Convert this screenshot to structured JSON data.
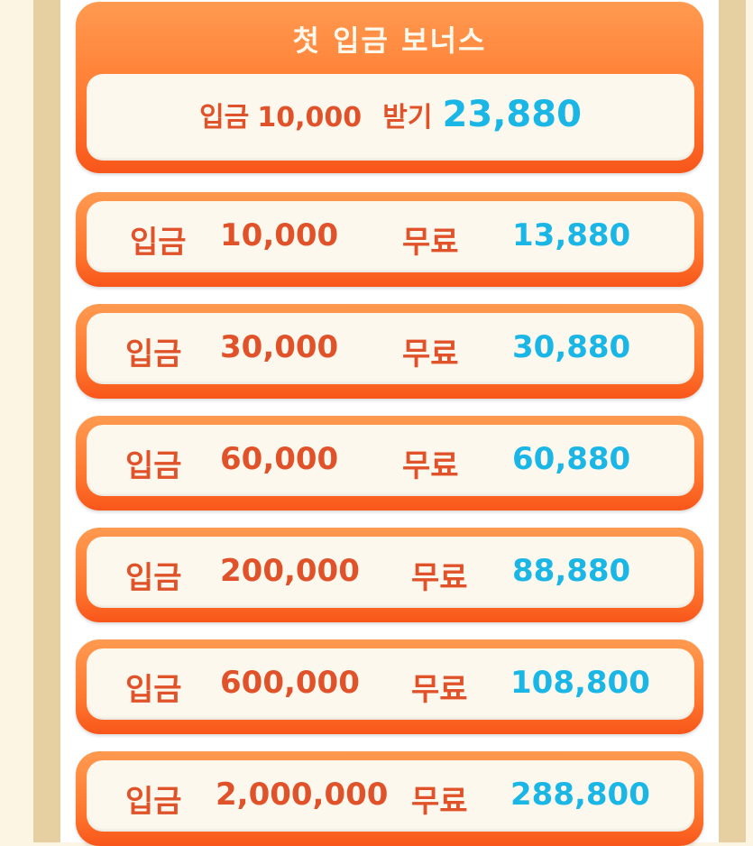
{
  "header": {
    "title": "첫 입금 보너스",
    "deposit_label": "입금",
    "deposit_amount": "10,000",
    "receive_label": "받기",
    "receive_amount": "23,880"
  },
  "rows": [
    {
      "label": "입금",
      "amount": "10,000",
      "free_label": "무료",
      "bonus": "13,880"
    },
    {
      "label": "입금",
      "amount": "30,000",
      "free_label": "무료",
      "bonus": "30,880"
    },
    {
      "label": "입금",
      "amount": "60,000",
      "free_label": "무료",
      "bonus": "60,880"
    },
    {
      "label": "입금",
      "amount": "200,000",
      "free_label": "무료",
      "bonus": "88,880"
    },
    {
      "label": "입금",
      "amount": "600,000",
      "free_label": "무료",
      "bonus": "108,800"
    },
    {
      "label": "입금",
      "amount": "2,000,000",
      "free_label": "무료",
      "bonus": "288,800"
    }
  ],
  "colors": {
    "accent_orange": "#ff7a30",
    "text_orange": "#e0532a",
    "text_blue": "#1ab6e6"
  }
}
